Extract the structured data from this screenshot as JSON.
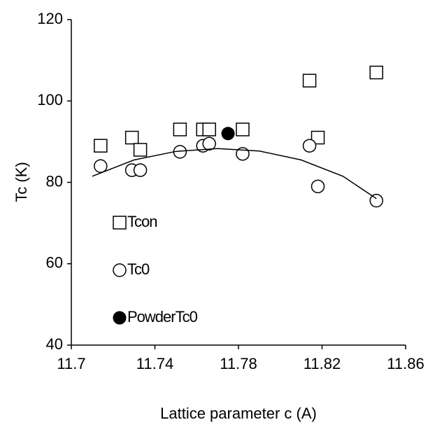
{
  "chart_data": {
    "type": "scatter",
    "x_label": "Lattice parameter c (A)",
    "y_label": "Tc (K)",
    "xlim": [
      11.7,
      11.86
    ],
    "xticks": [
      {
        "value": 11.7,
        "label": "11.7"
      },
      11.74,
      11.78,
      11.82,
      11.86
    ],
    "ylim": [
      40,
      120
    ],
    "yticks": [
      40,
      60,
      80,
      100,
      120
    ],
    "series": [
      {
        "name": "Tcon",
        "marker": "square",
        "color": "#000000",
        "x": [
          11.714,
          11.729,
          11.733,
          11.752,
          11.763,
          11.766,
          11.782,
          11.814,
          11.818,
          11.846
        ],
        "values": [
          89,
          91,
          88,
          93,
          93,
          93,
          93,
          105,
          91,
          107
        ]
      },
      {
        "name": "Tc0",
        "marker": "circle",
        "color": "#000000",
        "x": [
          11.714,
          11.729,
          11.733,
          11.752,
          11.763,
          11.766,
          11.782,
          11.814,
          11.818,
          11.846
        ],
        "values": [
          84,
          83,
          83,
          87.5,
          89,
          89.5,
          87,
          89,
          79,
          75.5
        ]
      },
      {
        "name": "PowderTc0",
        "marker": "filled-circle",
        "color": "#000000",
        "x": [
          11.775
        ],
        "values": [
          92
        ]
      },
      {
        "marker": "line",
        "color": "#000000",
        "x": [
          11.71,
          11.73,
          11.75,
          11.77,
          11.79,
          11.81,
          11.83,
          11.846
        ],
        "values": [
          81.5,
          85.5,
          87.6,
          88.3,
          87.7,
          85.5,
          81.5,
          76
        ]
      }
    ]
  }
}
